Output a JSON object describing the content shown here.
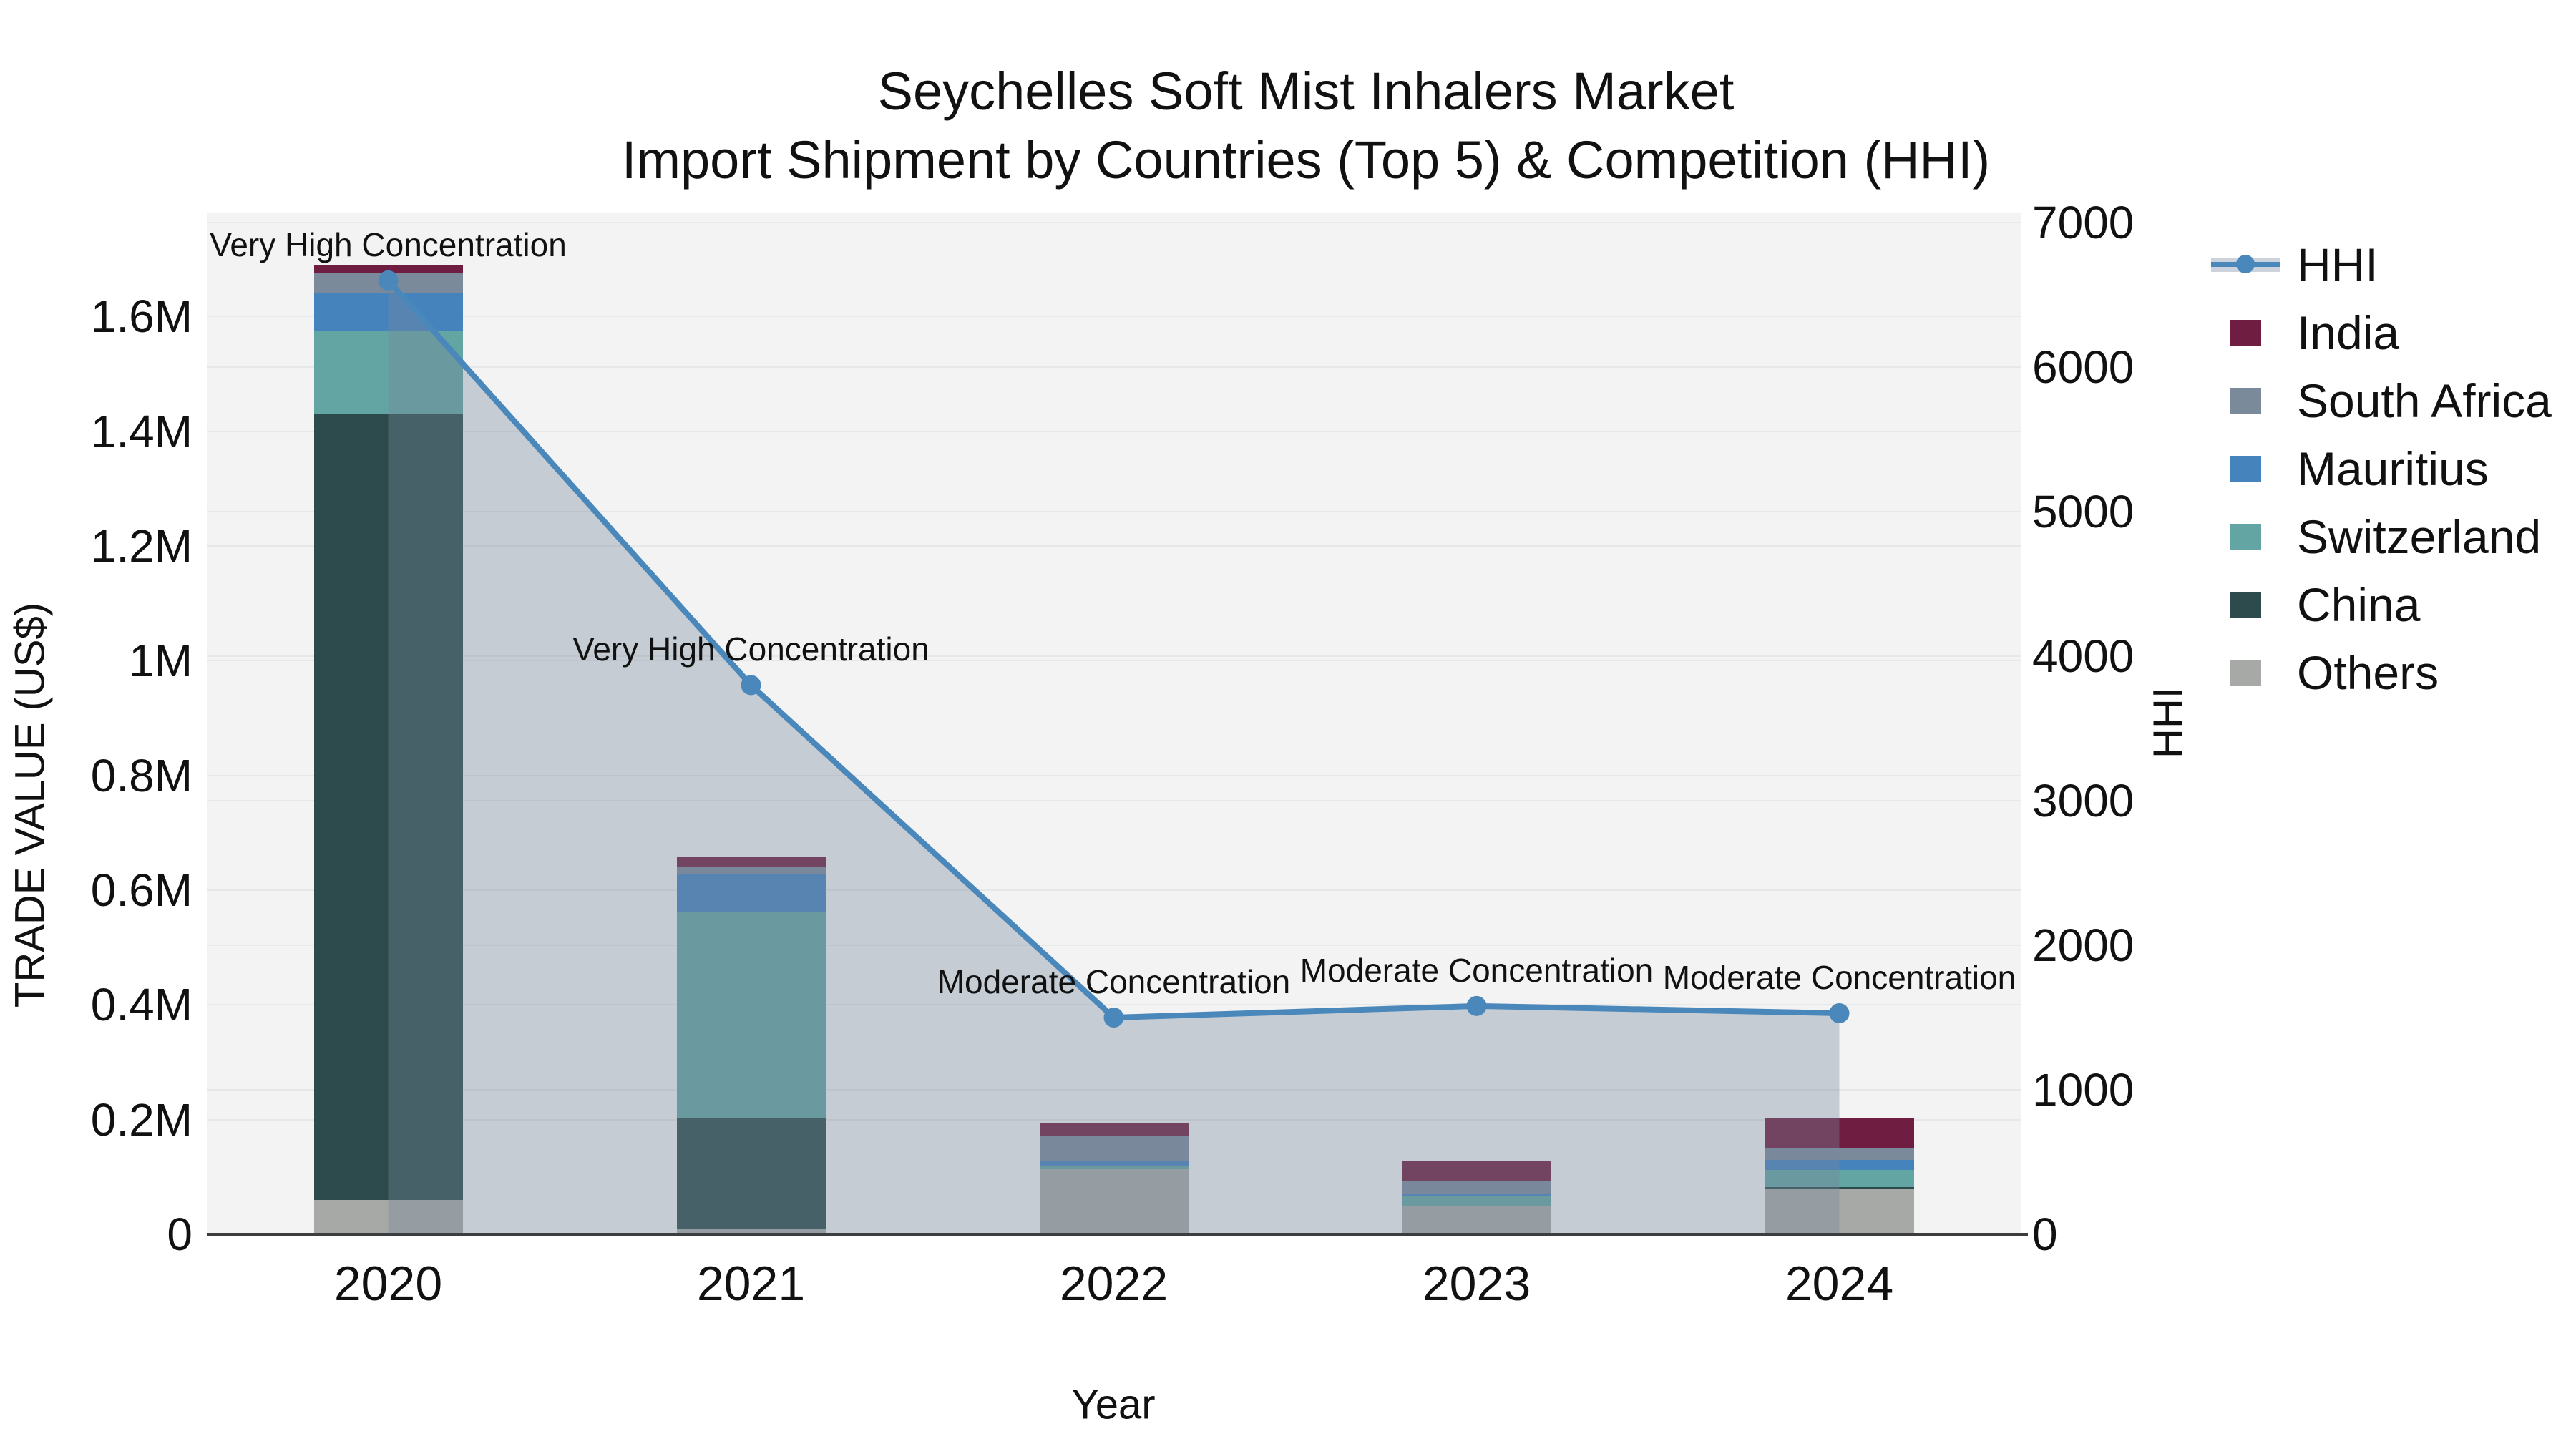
{
  "title": {
    "line1": "Seychelles Soft Mist Inhalers Market",
    "line2": "Import Shipment by Countries (Top 5) & Competition (HHI)"
  },
  "colors": {
    "India": "#6f1e41",
    "South Africa": "#7b8a9b",
    "Mauritius": "#4583bd",
    "Switzerland": "#63a5a2",
    "China": "#2d4b4c",
    "Others": "#a7a9a6",
    "hhi_line": "#4a87ba",
    "hhi_fill": "rgba(120,135,155,0.36)",
    "plot_bg": "#f2f3f2",
    "grid": "#e6e7e8",
    "axis_line": "#3b3d3e",
    "text": "#111111"
  },
  "legend": {
    "items": [
      {
        "label": "HHI",
        "type": "line"
      },
      {
        "label": "India",
        "type": "box"
      },
      {
        "label": "South Africa",
        "type": "box"
      },
      {
        "label": "Mauritius",
        "type": "box"
      },
      {
        "label": "Switzerland",
        "type": "box"
      },
      {
        "label": "China",
        "type": "box"
      },
      {
        "label": "Others",
        "type": "box"
      }
    ]
  },
  "chart_data": {
    "type": "bar",
    "subtype": "stacked-bars-with-line",
    "title": "Seychelles Soft Mist Inhalers Market — Import Shipment by Countries (Top 5) & Competition (HHI)",
    "xlabel": "Year",
    "categories": [
      "2020",
      "2021",
      "2022",
      "2023",
      "2024"
    ],
    "stack_order": [
      "Others",
      "China",
      "Switzerland",
      "Mauritius",
      "South Africa",
      "India"
    ],
    "series": [
      {
        "name": "India",
        "values": [
          15000,
          17000,
          21000,
          35000,
          52000
        ]
      },
      {
        "name": "South Africa",
        "values": [
          35000,
          12000,
          45000,
          23000,
          20000
        ]
      },
      {
        "name": "Mauritius",
        "values": [
          65000,
          67000,
          9000,
          5000,
          18000
        ]
      },
      {
        "name": "Switzerland",
        "values": [
          145000,
          359000,
          3000,
          17000,
          30000
        ]
      },
      {
        "name": "China",
        "values": [
          1370000,
          192000,
          2000,
          0,
          4000
        ]
      },
      {
        "name": "Others",
        "values": [
          60000,
          10000,
          113000,
          49000,
          78000
        ]
      }
    ],
    "line_series": {
      "name": "HHI",
      "values": [
        6600,
        3800,
        1500,
        1580,
        1530
      ],
      "axis": "right"
    },
    "annotations": [
      {
        "x": "2020",
        "text": "Very High Concentration"
      },
      {
        "x": "2021",
        "text": "Very High Concentration"
      },
      {
        "x": "2022",
        "text": "Moderate Concentration"
      },
      {
        "x": "2023",
        "text": "Moderate Concentration"
      },
      {
        "x": "2024",
        "text": "Moderate Concentration"
      }
    ],
    "y_left": {
      "label": "TRADE VALUE (US$)",
      "range": [
        0,
        1780000
      ],
      "ticks": [
        {
          "v": 0,
          "label": "0"
        },
        {
          "v": 200000,
          "label": "0.2M"
        },
        {
          "v": 400000,
          "label": "0.4M"
        },
        {
          "v": 600000,
          "label": "0.6M"
        },
        {
          "v": 800000,
          "label": "0.8M"
        },
        {
          "v": 1000000,
          "label": "1M"
        },
        {
          "v": 1200000,
          "label": "1.2M"
        },
        {
          "v": 1400000,
          "label": "1.4M"
        },
        {
          "v": 1600000,
          "label": "1.6M"
        }
      ]
    },
    "y_right": {
      "label": "HHI",
      "range": [
        0,
        7065
      ],
      "ticks": [
        {
          "v": 0,
          "label": "0"
        },
        {
          "v": 1000,
          "label": "1000"
        },
        {
          "v": 2000,
          "label": "2000"
        },
        {
          "v": 3000,
          "label": "3000"
        },
        {
          "v": 4000,
          "label": "4000"
        },
        {
          "v": 5000,
          "label": "5000"
        },
        {
          "v": 6000,
          "label": "6000"
        },
        {
          "v": 7000,
          "label": "7000"
        }
      ]
    },
    "legend_position": "right",
    "grid": true
  }
}
